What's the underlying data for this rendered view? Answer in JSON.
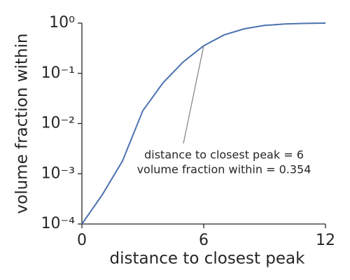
{
  "chart_data": {
    "type": "line",
    "x": [
      0,
      1,
      2,
      3,
      4,
      5,
      6,
      7,
      8,
      9,
      10,
      11,
      12
    ],
    "series": [
      {
        "name": "volume fraction within",
        "color": "#4c72b0",
        "values": [
          0.0001,
          0.00038,
          0.0018,
          0.018,
          0.065,
          0.17,
          0.354,
          0.58,
          0.77,
          0.9,
          0.96,
          0.99,
          1.0
        ]
      }
    ],
    "xlabel": "distance to closest peak",
    "ylabel": "volume fraction within",
    "xlim": [
      0,
      12
    ],
    "xticks": [
      0,
      6,
      12
    ],
    "ylim": [
      0.0001,
      1
    ],
    "yscale": "log",
    "yticks": [
      {
        "value": 0.0001,
        "label": "10⁻⁴"
      },
      {
        "value": 0.001,
        "label": "10⁻³"
      },
      {
        "value": 0.01,
        "label": "10⁻²"
      },
      {
        "value": 0.1,
        "label": "10⁻¹"
      },
      {
        "value": 1,
        "label": "10⁰"
      }
    ],
    "annotation": {
      "text": [
        "distance to closest peak = 6",
        "volume fraction within = 0.354"
      ],
      "x": 6,
      "y": 0.354
    }
  }
}
